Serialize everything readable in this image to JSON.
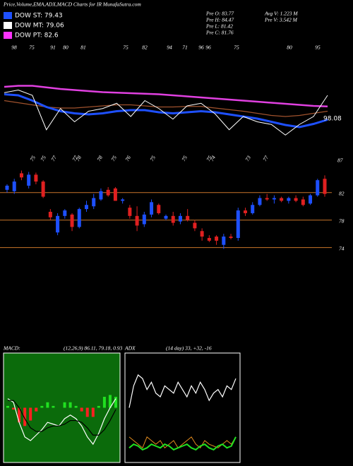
{
  "title": "Price,Volume,EMA,ADX,MACD Charts for IR MunafaSutra.com",
  "legend": [
    {
      "label": "DOW ST: 79.43",
      "color": "#1e50ff"
    },
    {
      "label": "DOW MT: 79.06",
      "color": "#ffffff"
    },
    {
      "label": "DOW PT: 82.6",
      "color": "#ff33ff"
    }
  ],
  "stats": [
    "Pre   O: 83.77",
    "Pre   H: 84.47",
    "Pre   L: 81.42",
    "Pre   C: 81.76",
    "Avg  V: 1.223  M",
    "Pre   V: 3.542  M"
  ],
  "chart_data": [
    {
      "type": "line",
      "ylim": [
        70,
        90
      ],
      "top_labels": [
        "98",
        "75",
        "91",
        "80",
        "81",
        "75",
        "82",
        "94",
        "71",
        "96",
        "96",
        "75",
        "80",
        "95"
      ],
      "end_label": "98.08",
      "series": [
        {
          "name": null,
          "color": "#e040e0",
          "width": 2.5,
          "values": [
            81.6,
            81.8,
            81.8,
            81.5,
            81.2,
            81.0,
            80.8,
            80.6,
            80.5,
            80.4,
            80.3,
            80.2,
            80.0,
            79.8,
            79.6,
            79.4,
            79.2,
            79.0,
            78.8,
            78.6,
            78.4,
            78.2,
            78.0,
            77.9
          ]
        },
        {
          "name": null,
          "color": "#a0522d",
          "width": 1.2,
          "values": [
            79.0,
            78.6,
            78.2,
            77.8,
            77.6,
            77.6,
            77.8,
            78.0,
            78.2,
            78.2,
            78.0,
            77.8,
            77.8,
            77.9,
            77.9,
            77.6,
            77.3,
            77.0,
            76.6,
            76.2,
            76.0,
            76.2,
            76.6,
            77.0
          ]
        },
        {
          "name": null,
          "color": "#1e50ff",
          "width": 3,
          "values": [
            80.2,
            80.0,
            79.0,
            77.8,
            77.0,
            76.6,
            76.4,
            76.6,
            77.0,
            77.2,
            77.2,
            76.8,
            76.6,
            76.8,
            77.0,
            76.8,
            76.4,
            76.0,
            75.6,
            75.0,
            74.4,
            74.0,
            74.6,
            75.4
          ]
        },
        {
          "name": null,
          "color": "#ffffff",
          "width": 1,
          "values": [
            80.5,
            81.0,
            80.0,
            73.5,
            77.5,
            75.0,
            77.0,
            77.5,
            78.5,
            76.0,
            79.0,
            77.5,
            75.5,
            78.0,
            78.5,
            76.5,
            73.5,
            76.0,
            75.0,
            74.5,
            72.5,
            74.5,
            76.0,
            80.0
          ]
        }
      ]
    },
    {
      "type": "candlestick",
      "ylim": [
        71.5,
        86.9
      ],
      "yticks": [
        74,
        78,
        82
      ],
      "grid_color": "#c8742a",
      "top_labels": [
        "75",
        "75",
        "77",
        "77",
        "78",
        "78",
        "75",
        "76",
        "75",
        "75",
        "75",
        "74",
        "73",
        "77",
        "87"
      ],
      "up_color": "#1e50ff",
      "down_color": "#e02020",
      "open": [
        82.4,
        82.2,
        84.8,
        83.0,
        84.6,
        83.6,
        79.2,
        76.2,
        78.6,
        78.8,
        77.0,
        79.6,
        80.0,
        81.0,
        82.4,
        82.6,
        80.8,
        79.8,
        78.6,
        77.4,
        78.8,
        80.2,
        78.2,
        78.6,
        77.8,
        78.6,
        77.6,
        76.4,
        75.4,
        75.6,
        74.4,
        75.6,
        75.4,
        79.4,
        79.0,
        80.2,
        81.2,
        81.0,
        81.2,
        80.8,
        81.2,
        81.0,
        80.4,
        81.6,
        84.0
      ],
      "high": [
        83.2,
        84.0,
        85.2,
        85.0,
        84.9,
        83.8,
        79.6,
        79.0,
        79.6,
        79.0,
        79.8,
        80.8,
        81.8,
        82.6,
        82.8,
        82.8,
        81.2,
        80.2,
        80.0,
        79.2,
        81.0,
        80.4,
        78.8,
        79.2,
        79.0,
        79.6,
        78.0,
        76.8,
        75.8,
        75.8,
        76.0,
        76.0,
        79.8,
        79.8,
        80.6,
        81.6,
        81.8,
        81.6,
        81.4,
        81.4,
        81.6,
        81.4,
        81.8,
        84.0,
        84.5
      ],
      "low": [
        82.0,
        81.8,
        83.8,
        82.6,
        83.2,
        81.2,
        78.0,
        75.8,
        78.2,
        76.4,
        76.8,
        79.2,
        79.6,
        80.8,
        81.4,
        80.8,
        80.4,
        78.2,
        76.4,
        77.0,
        78.4,
        78.8,
        78.0,
        77.2,
        77.4,
        77.8,
        76.4,
        75.0,
        74.8,
        74.4,
        73.8,
        75.2,
        75.0,
        78.6,
        78.8,
        80.0,
        80.8,
        80.4,
        80.6,
        80.4,
        80.6,
        80.0,
        80.2,
        81.4,
        81.4
      ],
      "close": [
        83.0,
        83.6,
        84.2,
        84.6,
        83.6,
        81.4,
        78.4,
        78.6,
        79.4,
        77.0,
        79.6,
        80.2,
        81.2,
        82.2,
        81.6,
        80.8,
        81.0,
        78.6,
        77.2,
        78.8,
        80.6,
        79.0,
        78.6,
        77.6,
        78.6,
        78.0,
        76.8,
        75.6,
        75.0,
        75.0,
        75.6,
        75.4,
        79.4,
        79.0,
        80.2,
        81.2,
        81.0,
        81.2,
        80.8,
        81.2,
        80.8,
        80.2,
        81.6,
        83.8,
        81.8
      ]
    },
    {
      "type": "macd",
      "label": "MACD:",
      "params": "(12,26,9) 86.11, 79.18, 0.93",
      "ylim": [
        -3,
        3
      ],
      "background": "#0b6b0b",
      "up_color": "#20e020",
      "down_color": "#ff2020",
      "macd": {
        "color": "#ffffff",
        "values": [
          0.5,
          0.3,
          -0.8,
          -1.6,
          -1.8,
          -1.5,
          -1.2,
          -0.8,
          -0.9,
          -1.0,
          -0.6,
          -0.4,
          -0.6,
          -1.0,
          -1.6,
          -2.0,
          -1.4,
          -0.6,
          0.0,
          0.5
        ]
      },
      "signal": {
        "color": "#000000",
        "values": [
          0.4,
          0.4,
          0.0,
          -0.6,
          -1.1,
          -1.3,
          -1.3,
          -1.1,
          -1.0,
          -1.0,
          -0.9,
          -0.7,
          -0.7,
          -0.8,
          -1.1,
          -1.5,
          -1.5,
          -1.2,
          -0.7,
          -0.1
        ]
      },
      "histogram": [
        0.1,
        -0.1,
        -0.8,
        -1.0,
        -0.7,
        -0.2,
        0.1,
        0.3,
        0.1,
        0.0,
        0.3,
        0.3,
        0.1,
        -0.2,
        -0.5,
        -0.5,
        0.1,
        0.6,
        0.7,
        0.6
      ]
    },
    {
      "type": "line",
      "label": "ADX",
      "params": "(14 day) 33, +32, -16",
      "ylim": [
        0,
        60
      ],
      "framed": true,
      "series": [
        {
          "name": null,
          "color": "#ffffff",
          "width": 1.2,
          "values": [
            30,
            42,
            48,
            46,
            40,
            44,
            38,
            36,
            42,
            40,
            38,
            44,
            40,
            36,
            42,
            38,
            44,
            40,
            34,
            38,
            40,
            36,
            42,
            40,
            46
          ]
        },
        {
          "name": null,
          "color": "#e08a1e",
          "width": 1,
          "values": [
            14,
            12,
            10,
            8,
            14,
            12,
            10,
            12,
            8,
            10,
            12,
            8,
            10,
            12,
            14,
            10,
            8,
            12,
            10,
            9,
            8,
            10,
            12,
            10,
            14
          ]
        },
        {
          "name": null,
          "color": "#20e020",
          "width": 2,
          "values": [
            8,
            10,
            9,
            7,
            8,
            10,
            9,
            8,
            10,
            9,
            7,
            8,
            9,
            10,
            8,
            7,
            9,
            10,
            8,
            7,
            9,
            10,
            8,
            9,
            14
          ]
        }
      ]
    }
  ]
}
